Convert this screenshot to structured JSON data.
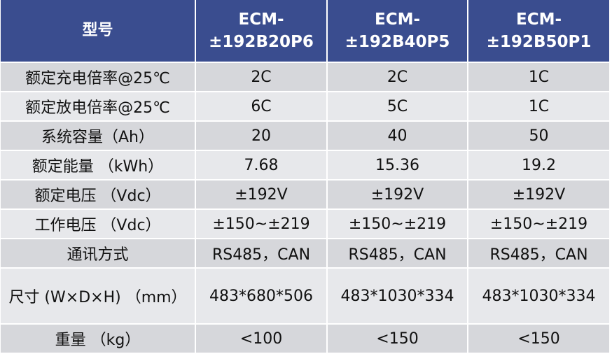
{
  "table": {
    "header": {
      "label": "型号",
      "models": [
        {
          "line1": "ECM-",
          "line2": "±192B20P6"
        },
        {
          "line1": "ECM-",
          "line2": "±192B40P5"
        },
        {
          "line1": "ECM-",
          "line2": "±192B50P1"
        }
      ]
    },
    "rows": [
      {
        "label": "额定充电倍率@25℃",
        "values": [
          "2C",
          "2C",
          "1C"
        ]
      },
      {
        "label": "额定放电倍率@25℃",
        "values": [
          "6C",
          "5C",
          "1C"
        ]
      },
      {
        "label": "系统容量（Ah）",
        "values": [
          "20",
          "40",
          "50"
        ]
      },
      {
        "label": "额定能量 （kWh）",
        "values": [
          "7.68",
          "15.36",
          "19.2"
        ]
      },
      {
        "label": "额定电压 （Vdc）",
        "values": [
          "±192V",
          "±192V",
          "±192V"
        ]
      },
      {
        "label": "工作电压 （Vdc）",
        "values": [
          "±150~±219",
          "±150~±219",
          "±150~±219"
        ]
      },
      {
        "label": "通讯方式",
        "values": [
          "RS485，CAN",
          "RS485，CAN",
          "RS485，CAN"
        ]
      },
      {
        "label": "尺寸 (W×D×H) （mm）",
        "values": [
          "483*680*506",
          "483*1030*334",
          "483*1030*334"
        ]
      },
      {
        "label": "重量 （kg）",
        "values": [
          "<100",
          "<150",
          "<150"
        ]
      }
    ]
  },
  "colors": {
    "header_bg": "#3a4d8f",
    "row_light": "#e7e8eb",
    "row_dark": "#d6d7db"
  }
}
